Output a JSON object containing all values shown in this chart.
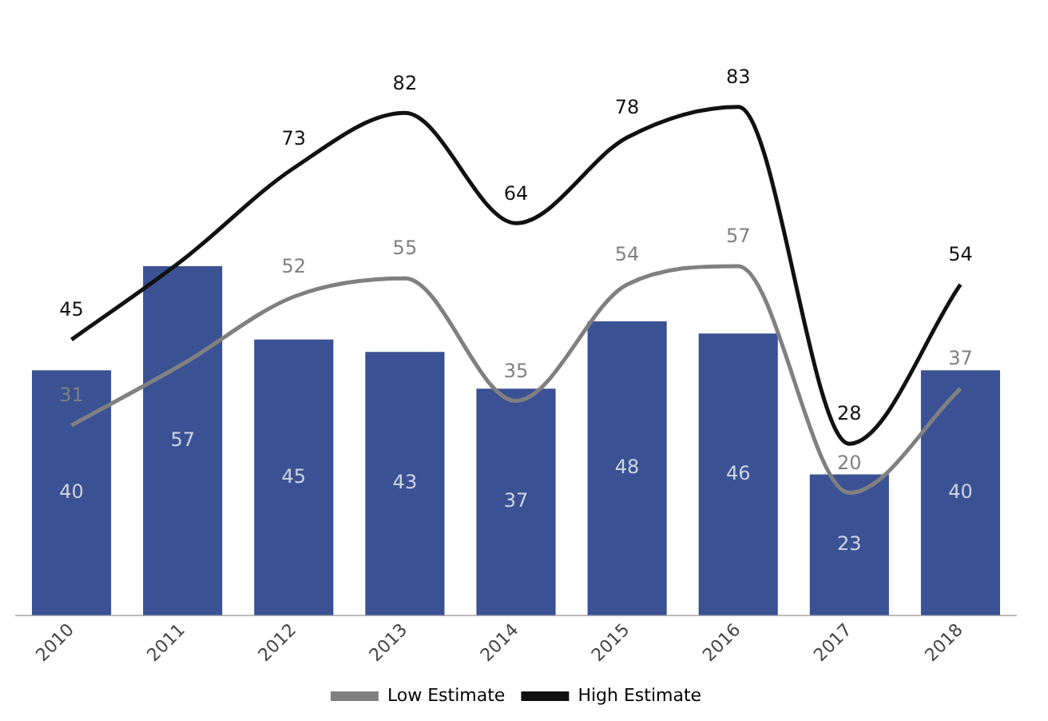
{
  "chart_data": {
    "type": "bar",
    "categories": [
      "2010",
      "2011",
      "2012",
      "2013",
      "2014",
      "2015",
      "2016",
      "2017",
      "2018"
    ],
    "series": [
      {
        "color": "#3a5294",
        "values": [
          40,
          57,
          45,
          43,
          37,
          48,
          46,
          23,
          40
        ],
        "value_labels": [
          "40",
          "57",
          "45",
          "43",
          "37",
          "48",
          "46",
          "23",
          "40"
        ]
      },
      {
        "type": "line",
        "name": "Low Estimate",
        "color": "#808080",
        "values": [
          31,
          41,
          52,
          55,
          35,
          54,
          57,
          20,
          37
        ],
        "value_labels": [
          "31",
          null,
          "52",
          "55",
          "35",
          "54",
          "57",
          "20",
          "37"
        ]
      },
      {
        "type": "line",
        "name": "High Estimate",
        "color": "#111111",
        "values": [
          45,
          58,
          73,
          82,
          64,
          78,
          83,
          28,
          54
        ],
        "value_labels": [
          "45",
          null,
          "73",
          "82",
          "64",
          "78",
          "83",
          "28",
          "54"
        ]
      }
    ],
    "legend": "bottom",
    "grid": false,
    "tick_labels": "x",
    "marker": "none",
    "line_style": "solid"
  }
}
